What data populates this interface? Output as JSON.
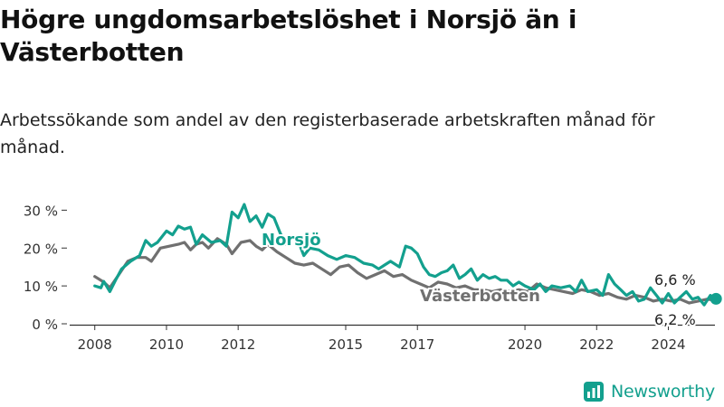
{
  "header": {
    "title": "Högre ungdomsarbetslöshet i Norsjö än i Västerbotten",
    "subtitle": "Arbetssökande som andel av den registerbaserade arbetskraften månad för månad."
  },
  "brand": {
    "name": "Newsworthy",
    "icon": "newsworthy-logo-icon",
    "color": "#13a08e"
  },
  "chart_data": {
    "type": "line",
    "grid": false,
    "legend": "inline labels on lines",
    "x_ticks": [
      "2008",
      "2010",
      "2012",
      "2015",
      "2017",
      "2020",
      "2022",
      "2024"
    ],
    "x_tick_positions": [
      2008.0,
      2010.0,
      2012.0,
      2015.0,
      2017.0,
      2020.0,
      2022.0,
      2024.0
    ],
    "xlim": [
      2007.3,
      2025.3
    ],
    "y_ticks": [
      "0 %",
      "10 %",
      "20 %",
      "30 %"
    ],
    "y_tick_values": [
      0,
      10,
      20,
      30
    ],
    "ylim": [
      0,
      32
    ],
    "series": [
      {
        "name": "Norsjö",
        "color": "#13a08e",
        "end_label": "6,6 %",
        "points": [
          [
            2008.0,
            10
          ],
          [
            2008.17,
            9.5
          ],
          [
            2008.25,
            11.2
          ],
          [
            2008.42,
            8.5
          ],
          [
            2008.58,
            11.5
          ],
          [
            2008.75,
            14.5
          ],
          [
            2009.0,
            16.5
          ],
          [
            2009.25,
            18
          ],
          [
            2009.42,
            22
          ],
          [
            2009.58,
            20.5
          ],
          [
            2009.75,
            21.5
          ],
          [
            2010.0,
            24.5
          ],
          [
            2010.17,
            23.5
          ],
          [
            2010.33,
            25.8
          ],
          [
            2010.5,
            25
          ],
          [
            2010.67,
            25.5
          ],
          [
            2010.83,
            21
          ],
          [
            2011.0,
            23.5
          ],
          [
            2011.25,
            21.5
          ],
          [
            2011.5,
            22
          ],
          [
            2011.67,
            20.5
          ],
          [
            2011.83,
            29.5
          ],
          [
            2012.0,
            28
          ],
          [
            2012.17,
            31.5
          ],
          [
            2012.33,
            27
          ],
          [
            2012.5,
            28.5
          ],
          [
            2012.67,
            25.5
          ],
          [
            2012.83,
            29
          ],
          [
            2013.0,
            28
          ],
          [
            2013.17,
            24
          ],
          [
            2013.33,
            21
          ],
          [
            2013.5,
            23
          ],
          [
            2013.67,
            22
          ],
          [
            2013.83,
            18
          ],
          [
            2014.0,
            20
          ],
          [
            2014.25,
            19.5
          ],
          [
            2014.5,
            18
          ],
          [
            2014.75,
            17
          ],
          [
            2015.0,
            18
          ],
          [
            2015.25,
            17.5
          ],
          [
            2015.5,
            16
          ],
          [
            2015.75,
            15.5
          ],
          [
            2015.92,
            14.5
          ],
          [
            2016.08,
            15.5
          ],
          [
            2016.25,
            16.5
          ],
          [
            2016.5,
            15
          ],
          [
            2016.67,
            20.5
          ],
          [
            2016.83,
            20
          ],
          [
            2017.0,
            18.5
          ],
          [
            2017.17,
            15
          ],
          [
            2017.33,
            13
          ],
          [
            2017.5,
            12.5
          ],
          [
            2017.67,
            13.5
          ],
          [
            2017.83,
            14
          ],
          [
            2018.0,
            15.5
          ],
          [
            2018.17,
            12
          ],
          [
            2018.33,
            13
          ],
          [
            2018.5,
            14.5
          ],
          [
            2018.67,
            11.5
          ],
          [
            2018.83,
            13
          ],
          [
            2019.0,
            12
          ],
          [
            2019.17,
            12.5
          ],
          [
            2019.33,
            11.5
          ],
          [
            2019.5,
            11.5
          ],
          [
            2019.67,
            10
          ],
          [
            2019.83,
            11
          ],
          [
            2020.0,
            10
          ],
          [
            2020.25,
            9
          ],
          [
            2020.42,
            10.5
          ],
          [
            2020.58,
            8.5
          ],
          [
            2020.75,
            10
          ],
          [
            2021.0,
            9.5
          ],
          [
            2021.25,
            10
          ],
          [
            2021.42,
            8.5
          ],
          [
            2021.58,
            11.5
          ],
          [
            2021.75,
            8.5
          ],
          [
            2022.0,
            9
          ],
          [
            2022.17,
            7.5
          ],
          [
            2022.33,
            13
          ],
          [
            2022.5,
            10.5
          ],
          [
            2022.67,
            9
          ],
          [
            2022.83,
            7.5
          ],
          [
            2023.0,
            8.5
          ],
          [
            2023.17,
            6
          ],
          [
            2023.33,
            6.5
          ],
          [
            2023.5,
            9.5
          ],
          [
            2023.67,
            7.5
          ],
          [
            2023.83,
            5.5
          ],
          [
            2024.0,
            8
          ],
          [
            2024.17,
            5.5
          ],
          [
            2024.33,
            7
          ],
          [
            2024.5,
            8.5
          ],
          [
            2024.67,
            6.5
          ],
          [
            2024.83,
            7
          ],
          [
            2025.0,
            5
          ],
          [
            2025.17,
            7.5
          ],
          [
            2025.33,
            6.6
          ]
        ]
      },
      {
        "name": "Västerbotten",
        "color": "#707070",
        "end_label": "6,2 %",
        "points": [
          [
            2008.0,
            12.5
          ],
          [
            2008.25,
            11
          ],
          [
            2008.42,
            9.5
          ],
          [
            2008.67,
            13
          ],
          [
            2008.92,
            16.5
          ],
          [
            2009.17,
            17.5
          ],
          [
            2009.42,
            17.5
          ],
          [
            2009.58,
            16.5
          ],
          [
            2009.83,
            20
          ],
          [
            2010.08,
            20.5
          ],
          [
            2010.33,
            21
          ],
          [
            2010.5,
            21.5
          ],
          [
            2010.67,
            19.5
          ],
          [
            2010.83,
            21
          ],
          [
            2011.0,
            21.5
          ],
          [
            2011.17,
            20
          ],
          [
            2011.42,
            22.5
          ],
          [
            2011.67,
            21
          ],
          [
            2011.83,
            18.5
          ],
          [
            2012.08,
            21.5
          ],
          [
            2012.33,
            22
          ],
          [
            2012.5,
            20.5
          ],
          [
            2012.67,
            19.5
          ],
          [
            2012.83,
            21
          ],
          [
            2013.08,
            19
          ],
          [
            2013.33,
            17.5
          ],
          [
            2013.58,
            16
          ],
          [
            2013.83,
            15.5
          ],
          [
            2014.08,
            16
          ],
          [
            2014.33,
            14.5
          ],
          [
            2014.58,
            13
          ],
          [
            2014.83,
            15
          ],
          [
            2015.08,
            15.5
          ],
          [
            2015.33,
            13.5
          ],
          [
            2015.58,
            12
          ],
          [
            2015.83,
            13
          ],
          [
            2016.08,
            14
          ],
          [
            2016.33,
            12.5
          ],
          [
            2016.58,
            13
          ],
          [
            2016.83,
            11.5
          ],
          [
            2017.08,
            10.5
          ],
          [
            2017.33,
            9.5
          ],
          [
            2017.58,
            11
          ],
          [
            2017.83,
            10.5
          ],
          [
            2018.08,
            9.5
          ],
          [
            2018.33,
            10
          ],
          [
            2018.58,
            9
          ],
          [
            2018.83,
            9
          ],
          [
            2019.08,
            8.5
          ],
          [
            2019.33,
            9
          ],
          [
            2019.58,
            8.5
          ],
          [
            2019.83,
            9
          ],
          [
            2020.08,
            8.5
          ],
          [
            2020.33,
            10.5
          ],
          [
            2020.58,
            9.5
          ],
          [
            2020.83,
            9
          ],
          [
            2021.08,
            8.5
          ],
          [
            2021.33,
            8
          ],
          [
            2021.58,
            9
          ],
          [
            2021.83,
            8.5
          ],
          [
            2022.08,
            7.5
          ],
          [
            2022.33,
            8
          ],
          [
            2022.58,
            7
          ],
          [
            2022.83,
            6.5
          ],
          [
            2023.08,
            7.5
          ],
          [
            2023.33,
            7
          ],
          [
            2023.58,
            6
          ],
          [
            2023.83,
            6.5
          ],
          [
            2024.08,
            6
          ],
          [
            2024.33,
            6.5
          ],
          [
            2024.58,
            5.5
          ],
          [
            2024.83,
            6
          ],
          [
            2025.08,
            6.5
          ],
          [
            2025.33,
            6.2
          ]
        ]
      }
    ]
  }
}
